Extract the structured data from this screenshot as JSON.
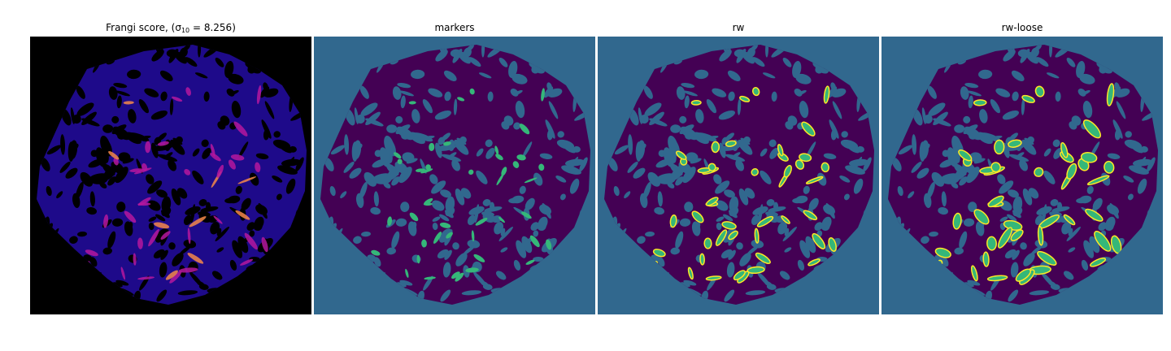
{
  "figure": {
    "panels": [
      {
        "id": "frangi",
        "title_prefix": "Frangi score, ",
        "title_math_open": "(σ",
        "title_math_sub": "10",
        "title_math_rest": " = 8.256)"
      },
      {
        "id": "markers",
        "title": "markers"
      },
      {
        "id": "rw",
        "title": "rw"
      },
      {
        "id": "rw-loose",
        "title": "rw-loose"
      }
    ],
    "colors": {
      "background_black": "#000000",
      "background_teal": "#31688e",
      "tissue_dark": "#440154",
      "marker_green": "#35b779",
      "highlight_yellow": "#fde725",
      "frangi_blue": "#2a0cb0",
      "frangi_magenta": "#b5179e",
      "frangi_orange": "#f48849"
    },
    "colormaps": {
      "frangi": "plasma",
      "segmentations": "viridis"
    }
  }
}
